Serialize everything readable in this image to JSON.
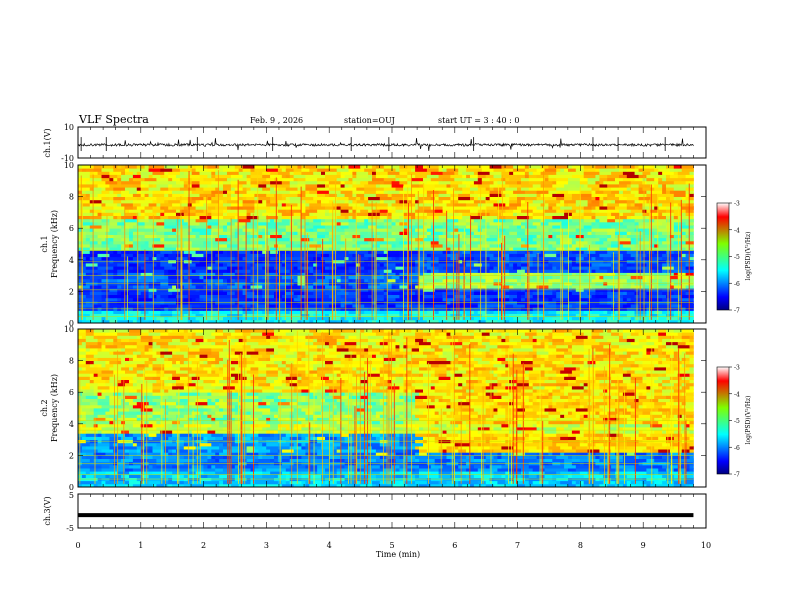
{
  "header": {
    "title": "VLF Spectra",
    "date": "Feb. 9 , 2026",
    "station": "station=OUJ",
    "start_ut": "start UT = 3 : 40 : 0"
  },
  "chart_data": [
    {
      "type": "line",
      "name": "ch1-waveform",
      "ylabel": "ch.1(V)",
      "ylim": [
        -10,
        10
      ],
      "yticks": [
        "10",
        "-10"
      ],
      "xlim": [
        0,
        10
      ],
      "baseline": -1.5
    },
    {
      "type": "heatmap",
      "name": "ch1-spectrogram",
      "ylabel": "ch.1",
      "ylabel2": "Frequency (kHz)",
      "ylim": [
        0,
        10
      ],
      "yticks": [
        "0",
        "2",
        "4",
        "6",
        "8",
        "10"
      ],
      "xlim": [
        0,
        10
      ],
      "colorbar": {
        "min": -7,
        "max": -3,
        "ticks": [
          "-3",
          "-4",
          "-5",
          "-6",
          "-7"
        ],
        "label": "log(PSD)(V²/Hz)"
      }
    },
    {
      "type": "heatmap",
      "name": "ch2-spectrogram",
      "ylabel": "ch.2",
      "ylabel2": "Frequency (kHz)",
      "ylim": [
        0,
        10
      ],
      "yticks": [
        "0",
        "2",
        "4",
        "6",
        "8",
        "10"
      ],
      "xlim": [
        0,
        10
      ],
      "colorbar": {
        "min": -7,
        "max": -3,
        "ticks": [
          "-3",
          "-4",
          "-5",
          "-6",
          "-7"
        ],
        "label": "log(PSD)(V²/Hz)"
      }
    },
    {
      "type": "line",
      "name": "ch3-voltage",
      "ylabel": "ch.3(V)",
      "ylim": [
        -5,
        5
      ],
      "yticks": [
        "5",
        "-5"
      ],
      "xlim": [
        0,
        10
      ],
      "value": -1.2
    }
  ],
  "xaxis": {
    "label": "Time (min)",
    "ticks": [
      "0",
      "1",
      "2",
      "3",
      "4",
      "5",
      "6",
      "7",
      "8",
      "9",
      "10"
    ],
    "data_end": 9.8
  }
}
